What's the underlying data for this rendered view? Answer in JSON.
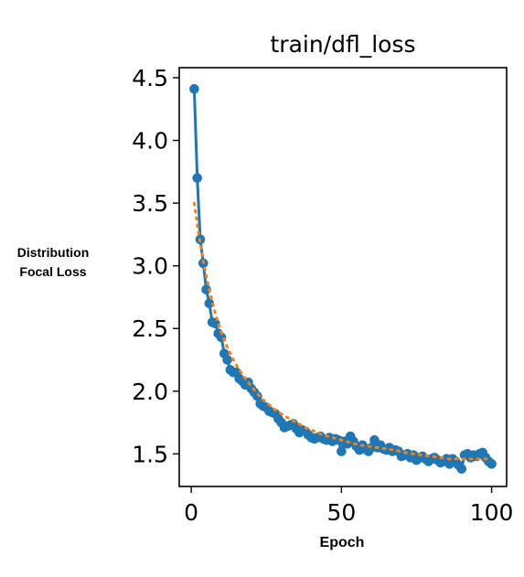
{
  "page": {
    "ylabel_line1": "Distribution",
    "ylabel_line2": "Focal Loss",
    "xlabel": "Epoch"
  },
  "chart_data": {
    "type": "line",
    "title": "train/dfl_loss",
    "xlabel": "Epoch",
    "ylabel": "Distribution Focal Loss",
    "xlim": [
      -4,
      105
    ],
    "ylim": [
      1.24,
      4.58
    ],
    "xticks": [
      0,
      50,
      100
    ],
    "xtick_labels": [
      "0",
      "50",
      "100"
    ],
    "yticks": [
      1.5,
      2.0,
      2.5,
      3.0,
      3.5,
      4.0,
      4.5
    ],
    "ytick_labels": [
      "1.5",
      "2.0",
      "2.5",
      "3.0",
      "3.5",
      "4.0",
      "4.5"
    ],
    "grid": false,
    "legend": "none",
    "colors": {
      "results": "#1f77b4",
      "smooth": "#ff7f0e"
    },
    "series": [
      {
        "role": "results",
        "style": "line-markers",
        "x": [
          1,
          2,
          3,
          4,
          5,
          6,
          7,
          8,
          9,
          10,
          11,
          12,
          13,
          14,
          15,
          16,
          17,
          18,
          19,
          20,
          21,
          22,
          23,
          24,
          25,
          26,
          27,
          28,
          29,
          30,
          31,
          32,
          33,
          34,
          35,
          36,
          37,
          38,
          39,
          40,
          41,
          42,
          43,
          44,
          45,
          46,
          47,
          48,
          49,
          50,
          51,
          52,
          53,
          54,
          55,
          56,
          57,
          58,
          59,
          60,
          61,
          62,
          63,
          64,
          65,
          66,
          67,
          68,
          69,
          70,
          71,
          72,
          73,
          74,
          75,
          76,
          77,
          78,
          79,
          80,
          81,
          82,
          83,
          84,
          85,
          86,
          87,
          88,
          89,
          90,
          91,
          92,
          93,
          94,
          95,
          96,
          97,
          98,
          99,
          100
        ],
        "y": [
          4.41,
          3.7,
          3.21,
          3.02,
          2.81,
          2.7,
          2.55,
          2.54,
          2.46,
          2.43,
          2.3,
          2.25,
          2.17,
          2.15,
          2.15,
          2.1,
          2.08,
          2.05,
          2.07,
          2.02,
          1.99,
          1.96,
          1.9,
          1.88,
          1.87,
          1.84,
          1.83,
          1.82,
          1.78,
          1.75,
          1.71,
          1.72,
          1.73,
          1.74,
          1.7,
          1.67,
          1.69,
          1.68,
          1.65,
          1.63,
          1.62,
          1.63,
          1.64,
          1.62,
          1.61,
          1.63,
          1.6,
          1.62,
          1.61,
          1.52,
          1.6,
          1.58,
          1.64,
          1.6,
          1.56,
          1.53,
          1.57,
          1.54,
          1.52,
          1.55,
          1.61,
          1.55,
          1.57,
          1.54,
          1.53,
          1.55,
          1.52,
          1.53,
          1.52,
          1.48,
          1.49,
          1.5,
          1.47,
          1.49,
          1.45,
          1.47,
          1.48,
          1.46,
          1.44,
          1.46,
          1.47,
          1.45,
          1.43,
          1.44,
          1.46,
          1.42,
          1.46,
          1.44,
          1.41,
          1.38,
          1.49,
          1.5,
          1.47,
          1.49,
          1.48,
          1.5,
          1.51,
          1.47,
          1.44,
          1.42
        ]
      },
      {
        "role": "smooth",
        "style": "dotted",
        "x": [
          1,
          2,
          3,
          4,
          5,
          6,
          7,
          8,
          9,
          10,
          12,
          14,
          16,
          18,
          20,
          22,
          24,
          26,
          28,
          30,
          32,
          35,
          38,
          41,
          44,
          47,
          50,
          53,
          56,
          59,
          62,
          65,
          68,
          71,
          74,
          77,
          80,
          83,
          86,
          89,
          92,
          95,
          98,
          100
        ],
        "y": [
          3.5,
          3.33,
          3.18,
          3.04,
          2.92,
          2.81,
          2.71,
          2.62,
          2.54,
          2.47,
          2.35,
          2.25,
          2.17,
          2.1,
          2.04,
          1.98,
          1.93,
          1.89,
          1.85,
          1.82,
          1.79,
          1.75,
          1.71,
          1.68,
          1.65,
          1.63,
          1.61,
          1.59,
          1.57,
          1.56,
          1.55,
          1.54,
          1.53,
          1.51,
          1.5,
          1.49,
          1.48,
          1.47,
          1.46,
          1.46,
          1.46,
          1.46,
          1.46,
          1.45
        ]
      }
    ]
  }
}
